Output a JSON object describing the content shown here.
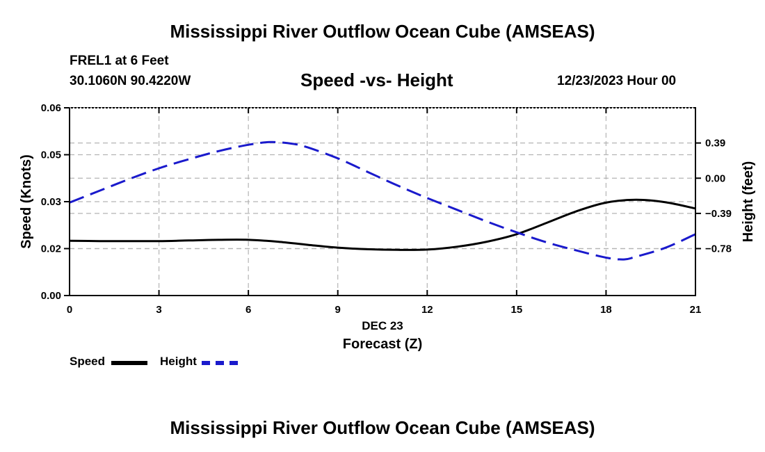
{
  "page": {
    "title": "Mississippi River Outflow Ocean Cube (AMSEAS)",
    "station": "FREL1 at 6 Feet",
    "coords": "30.1060N  90.4220W",
    "subtitle": "Speed -vs- Height",
    "datetime": "12/23/2023 Hour 00",
    "date_label": "DEC 23",
    "footer_title": "Mississippi River Outflow Ocean Cube (AMSEAS)"
  },
  "legend": {
    "speed_label": "Speed",
    "height_label": "Height"
  },
  "colors": {
    "speed": "#000000",
    "height": "#1a1acc",
    "grid": "#b4b4b4"
  },
  "chart_data": {
    "type": "line",
    "title": "Speed -vs- Height",
    "xlabel": "Forecast (Z)",
    "ylabel": "Speed (Knots)",
    "y2label": "Height (feet)",
    "xlim": [
      0,
      21
    ],
    "xticks": [
      0,
      3,
      6,
      9,
      12,
      15,
      18,
      21
    ],
    "ylim": [
      0,
      0.06
    ],
    "yticks": [
      0.0,
      0.015,
      0.03,
      0.045,
      0.06
    ],
    "ytick_labels": [
      "0.00",
      "0.02",
      "0.03",
      "0.05",
      "0.06"
    ],
    "y2lim": [
      -1.3,
      0.78
    ],
    "y2ticks": [
      -0.78,
      -0.39,
      0.0,
      0.39
    ],
    "y2tick_labels": [
      "−0.78",
      "−0.39",
      "0.00",
      "0.39"
    ],
    "grid": true,
    "legend": "bottom-left",
    "series": [
      {
        "name": "Speed",
        "axis": "left",
        "style": "solid",
        "x": [
          0,
          1,
          2,
          3,
          4,
          5,
          6,
          7,
          8,
          9,
          10,
          11,
          12,
          13,
          14,
          15,
          16,
          17,
          18,
          19,
          20,
          21
        ],
        "values": [
          0.0175,
          0.0174,
          0.0174,
          0.0174,
          0.0176,
          0.0178,
          0.0178,
          0.0172,
          0.0162,
          0.0153,
          0.0148,
          0.0146,
          0.0147,
          0.0156,
          0.0172,
          0.0196,
          0.0232,
          0.0269,
          0.0297,
          0.0306,
          0.0298,
          0.0278
        ]
      },
      {
        "name": "Height",
        "axis": "right",
        "style": "dashed",
        "x": [
          0,
          1,
          2,
          3,
          4,
          5,
          6,
          6.75,
          7.5,
          8,
          9,
          10,
          11,
          12,
          13,
          14,
          15,
          16,
          17,
          18,
          18.6,
          19,
          20,
          21
        ],
        "values": [
          -0.27,
          -0.14,
          -0.01,
          0.11,
          0.21,
          0.3,
          0.37,
          0.4,
          0.38,
          0.34,
          0.22,
          0.07,
          -0.08,
          -0.22,
          -0.35,
          -0.48,
          -0.6,
          -0.71,
          -0.8,
          -0.88,
          -0.9,
          -0.87,
          -0.77,
          -0.62
        ]
      }
    ]
  }
}
